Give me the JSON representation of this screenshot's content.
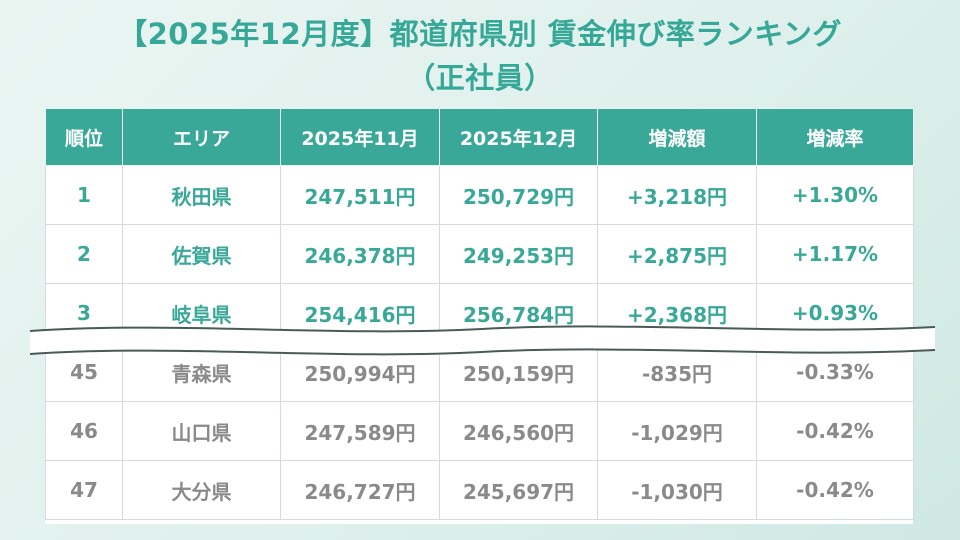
{
  "title": {
    "line1": "【2025年12月度】都道府県別 賃金伸び率ランキング",
    "line2": "（正社員）"
  },
  "table": {
    "headers": [
      "順位",
      "エリア",
      "2025年11月",
      "2025年12月",
      "増減額",
      "増減率"
    ],
    "top_rows": [
      [
        "1",
        "秋田県",
        "247,511円",
        "250,729円",
        "+3,218円",
        "+1.30%"
      ],
      [
        "2",
        "佐賀県",
        "246,378円",
        "249,253円",
        "+2,875円",
        "+1.17%"
      ],
      [
        "3",
        "岐阜県",
        "254,416円",
        "256,784円",
        "+2,368円",
        "+0.93%"
      ]
    ],
    "bottom_rows": [
      [
        "45",
        "青森県",
        "250,994円",
        "250,159円",
        "-835円",
        "-0.33%"
      ],
      [
        "46",
        "山口県",
        "247,589円",
        "246,560円",
        "-1,029円",
        "-0.42%"
      ],
      [
        "47",
        "大分県",
        "246,727円",
        "245,697円",
        "-1,030円",
        "-0.42%"
      ]
    ]
  },
  "colors": {
    "accent": "#3aa898",
    "title": "#36a898",
    "muted_text": "#8a8a8a",
    "background": "#dff0ec"
  }
}
